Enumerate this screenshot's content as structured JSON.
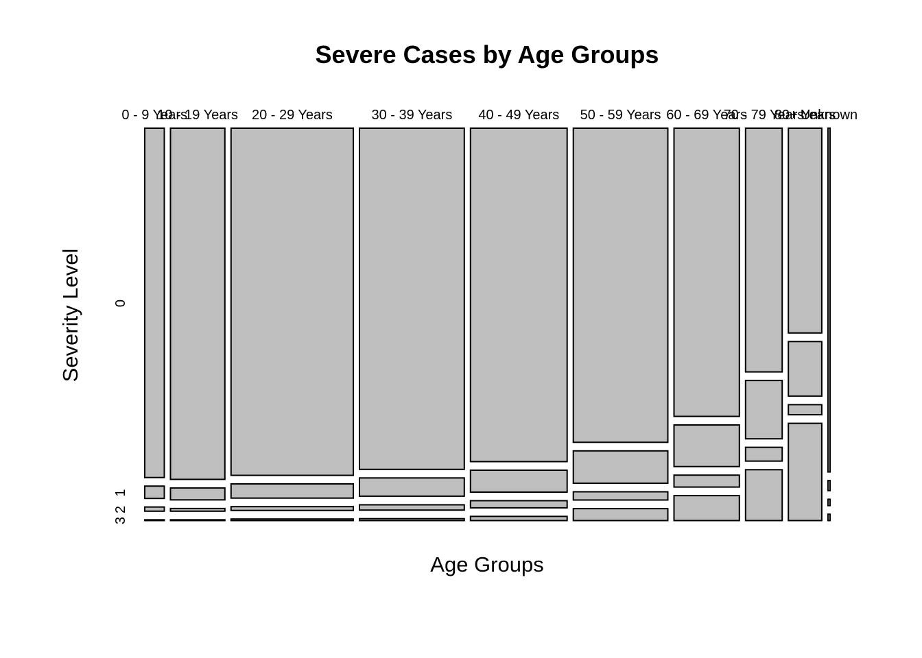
{
  "chart_data": {
    "type": "mosaic",
    "title": "Severe Cases by Age Groups",
    "xlabel": "Age Groups",
    "ylabel": "Severity Level",
    "categories": [
      "0 - 9 Years",
      "10 - 19 Years",
      "20 - 29 Years",
      "30 - 39 Years",
      "40 - 49 Years",
      "50 - 59 Years",
      "60 - 69 Years",
      "70 - 79 Years",
      "80+ Years",
      "Unknown"
    ],
    "category_weights": [
      0.55,
      1.53,
      3.44,
      2.95,
      2.72,
      2.66,
      1.84,
      1.03,
      0.94,
      0.06
    ],
    "levels": [
      "0",
      "1",
      "2",
      "3"
    ],
    "level_tick_labels": [
      "0",
      "1",
      "2",
      "3"
    ],
    "proportions": [
      [
        0.945,
        0.036,
        0.014,
        0.005
      ],
      [
        0.95,
        0.035,
        0.01,
        0.005
      ],
      [
        0.939,
        0.041,
        0.013,
        0.007
      ],
      [
        0.923,
        0.052,
        0.017,
        0.008
      ],
      [
        0.902,
        0.062,
        0.022,
        0.014
      ],
      [
        0.85,
        0.09,
        0.025,
        0.035
      ],
      [
        0.78,
        0.115,
        0.035,
        0.07
      ],
      [
        0.66,
        0.16,
        0.04,
        0.14
      ],
      [
        0.555,
        0.15,
        0.03,
        0.265
      ],
      [
        0.93,
        0.03,
        0.02,
        0.02
      ]
    ]
  }
}
